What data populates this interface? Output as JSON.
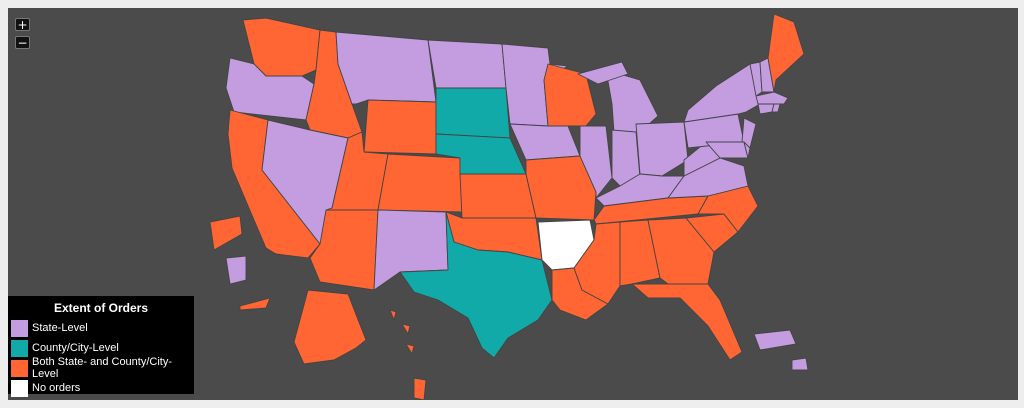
{
  "legend": {
    "title": "Extent of Orders",
    "items": [
      {
        "label": "State-Level",
        "color": "#c39de0"
      },
      {
        "label": "County/City-Level",
        "color": "#12aaa8"
      },
      {
        "label": "Both State- and County/City-Level",
        "color": "#ff6633"
      },
      {
        "label": "No orders",
        "color": "#ffffff"
      }
    ]
  },
  "controls": {
    "zoom_in": "+",
    "zoom_out": "−"
  },
  "colors": {
    "background": "#4b4b4b",
    "border": "#444444"
  },
  "states": [
    {
      "name": "Washington",
      "category": "both"
    },
    {
      "name": "Oregon",
      "category": "state"
    },
    {
      "name": "California",
      "category": "both"
    },
    {
      "name": "Idaho",
      "category": "both"
    },
    {
      "name": "Nevada",
      "category": "state"
    },
    {
      "name": "Montana",
      "category": "state"
    },
    {
      "name": "Wyoming",
      "category": "both"
    },
    {
      "name": "Utah",
      "category": "both"
    },
    {
      "name": "Arizona",
      "category": "both"
    },
    {
      "name": "Colorado",
      "category": "both"
    },
    {
      "name": "New Mexico",
      "category": "state"
    },
    {
      "name": "North Dakota",
      "category": "state"
    },
    {
      "name": "South Dakota",
      "category": "county"
    },
    {
      "name": "Nebraska",
      "category": "county"
    },
    {
      "name": "Kansas",
      "category": "both"
    },
    {
      "name": "Oklahoma",
      "category": "both"
    },
    {
      "name": "Texas",
      "category": "county"
    },
    {
      "name": "Minnesota",
      "category": "state"
    },
    {
      "name": "Iowa",
      "category": "state"
    },
    {
      "name": "Missouri",
      "category": "both"
    },
    {
      "name": "Arkansas",
      "category": "none"
    },
    {
      "name": "Louisiana",
      "category": "both"
    },
    {
      "name": "Wisconsin",
      "category": "both"
    },
    {
      "name": "Illinois",
      "category": "state"
    },
    {
      "name": "Michigan",
      "category": "state"
    },
    {
      "name": "Indiana",
      "category": "state"
    },
    {
      "name": "Ohio",
      "category": "state"
    },
    {
      "name": "Kentucky",
      "category": "state"
    },
    {
      "name": "Tennessee",
      "category": "both"
    },
    {
      "name": "Mississippi",
      "category": "both"
    },
    {
      "name": "Alabama",
      "category": "both"
    },
    {
      "name": "Georgia",
      "category": "both"
    },
    {
      "name": "Florida",
      "category": "both"
    },
    {
      "name": "South Carolina",
      "category": "both"
    },
    {
      "name": "North Carolina",
      "category": "both"
    },
    {
      "name": "Virginia",
      "category": "state"
    },
    {
      "name": "West Virginia",
      "category": "state"
    },
    {
      "name": "Pennsylvania",
      "category": "state"
    },
    {
      "name": "New York",
      "category": "state"
    },
    {
      "name": "New Jersey",
      "category": "state"
    },
    {
      "name": "Maryland",
      "category": "state"
    },
    {
      "name": "Delaware",
      "category": "state"
    },
    {
      "name": "Vermont",
      "category": "state"
    },
    {
      "name": "New Hampshire",
      "category": "state"
    },
    {
      "name": "Massachusetts",
      "category": "state"
    },
    {
      "name": "Connecticut",
      "category": "state"
    },
    {
      "name": "Rhode Island",
      "category": "state"
    },
    {
      "name": "Maine",
      "category": "both"
    },
    {
      "name": "Alaska",
      "category": "both"
    },
    {
      "name": "Hawaii",
      "category": "both"
    },
    {
      "name": "Puerto Rico",
      "category": "state"
    }
  ]
}
